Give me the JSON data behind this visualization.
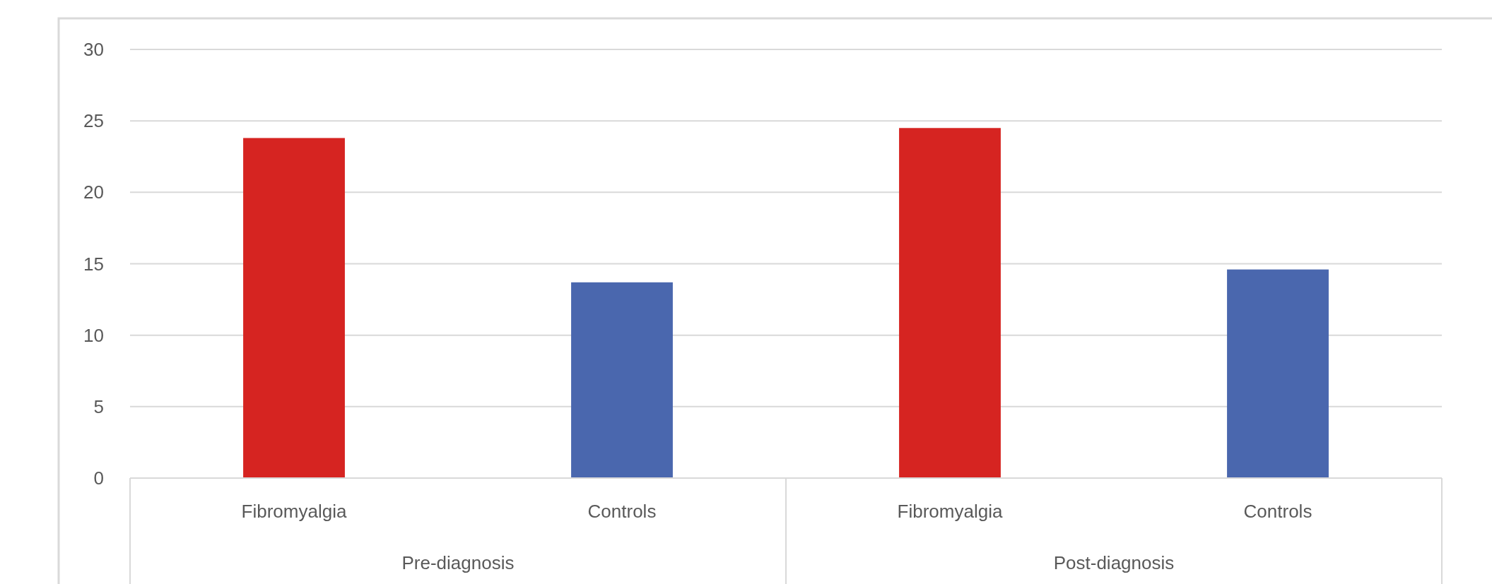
{
  "chart_data": {
    "type": "bar",
    "categories": [
      "Fibromyalgia",
      "Controls",
      "Fibromyalgia",
      "Controls"
    ],
    "values": [
      23.8,
      13.7,
      24.5,
      14.6
    ],
    "colors": [
      "#d62421",
      "#4a67ae",
      "#d62421",
      "#4a67ae"
    ],
    "annotations": [
      "Pre-diagnosis",
      "Post-diagnosis"
    ],
    "ylim": [
      0,
      30
    ],
    "yticks": [
      0,
      5,
      10,
      15,
      20,
      25,
      30
    ],
    "grid": "y"
  }
}
